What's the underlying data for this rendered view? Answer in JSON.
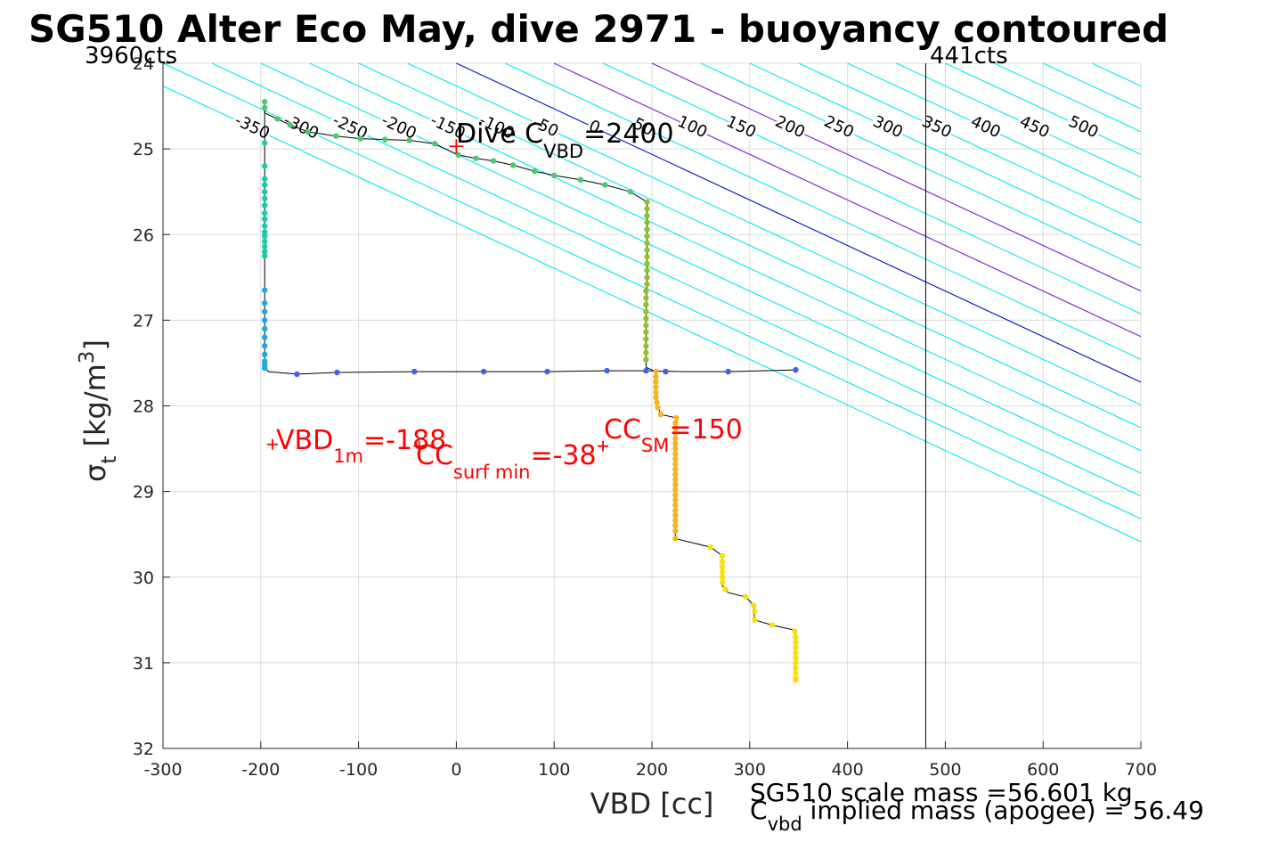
{
  "chart_data": {
    "type": "scatter",
    "title": "SG510 Alter Eco May, dive 2971 - buoyancy contoured",
    "xlabel": "VBD [cc]",
    "ylabel_main": "σ",
    "ylabel_sub": "t",
    "ylabel_rest": " [kg/m",
    "ylabel_sup": "3",
    "ylabel_close": "]",
    "xlim": [
      -300,
      700
    ],
    "ylim": [
      24,
      32
    ],
    "y_reversed": true,
    "grid": true,
    "xticks": [
      -300,
      -200,
      -100,
      0,
      100,
      200,
      300,
      400,
      500,
      600,
      700
    ],
    "yticks": [
      24,
      25,
      26,
      27,
      28,
      29,
      30,
      31,
      32
    ],
    "top_left_label": "3960cts",
    "top_right_label": "441cts",
    "vbd_limit_line_x": 480,
    "contour_slope_cc_per_kgm3": 188,
    "contours_cyan": [
      -350,
      -300,
      -250,
      -200,
      -150,
      -100,
      -50,
      50,
      100,
      150,
      200,
      250,
      300,
      350,
      400,
      450,
      500,
      550,
      600,
      650,
      700,
      750,
      800,
      850
    ],
    "contours_blue": [
      0
    ],
    "contours_purple": [
      100,
      200
    ],
    "contour_labels_upper": [
      {
        "text": "-350",
        "v": -350
      },
      {
        "text": "-300",
        "v": -300
      },
      {
        "text": "-250",
        "v": -250
      },
      {
        "text": "-200",
        "v": -200
      },
      {
        "text": "-150",
        "v": -150
      },
      {
        "text": "-100",
        "v": -100
      },
      {
        "text": "-50",
        "v": -50
      },
      {
        "text": "0",
        "v": 0
      },
      {
        "text": "50",
        "v": 50
      },
      {
        "text": "100",
        "v": 100
      },
      {
        "text": "150",
        "v": 150
      },
      {
        "text": "200",
        "v": 200
      },
      {
        "text": "250",
        "v": 250
      },
      {
        "text": "300",
        "v": 300
      },
      {
        "text": "350",
        "v": 350
      },
      {
        "text": "400",
        "v": 400
      },
      {
        "text": "450",
        "v": 450
      },
      {
        "text": "500",
        "v": 500
      }
    ],
    "contour_labels_lower": [
      {
        "text": "-50",
        "v": -50
      },
      {
        "text": "0",
        "v": 0
      },
      {
        "text": "50",
        "v": 50
      },
      {
        "text": "100",
        "v": 100
      },
      {
        "text": "150",
        "v": 150
      },
      {
        "text": "200",
        "v": 200
      },
      {
        "text": "250",
        "v": 250
      },
      {
        "text": "300",
        "v": 300
      },
      {
        "text": "350",
        "v": 350
      },
      {
        "text": "400",
        "v": 400
      },
      {
        "text": "450",
        "v": 450
      },
      {
        "text": "500",
        "v": 500
      }
    ],
    "profile_path": [
      [
        -196,
        24.45
      ],
      [
        -196,
        24.58
      ],
      [
        -183,
        24.65
      ],
      [
        -170,
        24.72
      ],
      [
        -152,
        24.8
      ],
      [
        -123,
        24.85
      ],
      [
        -98,
        24.88
      ],
      [
        -73,
        24.89
      ],
      [
        -48,
        24.9
      ],
      [
        -22,
        24.94
      ],
      [
        2,
        25.07
      ],
      [
        20,
        25.11
      ],
      [
        38,
        25.14
      ],
      [
        58,
        25.19
      ],
      [
        80,
        25.26
      ],
      [
        100,
        25.31
      ],
      [
        127,
        25.36
      ],
      [
        152,
        25.42
      ],
      [
        178,
        25.5
      ],
      [
        195,
        25.62
      ],
      [
        195,
        26.0
      ],
      [
        195,
        26.5
      ],
      [
        194,
        27.0
      ],
      [
        194,
        27.55
      ],
      [
        204,
        27.6
      ],
      [
        204,
        27.8
      ],
      [
        206,
        28.0
      ],
      [
        209,
        28.1
      ],
      [
        225,
        28.14
      ],
      [
        224,
        28.6
      ],
      [
        224,
        29.2
      ],
      [
        224,
        29.55
      ],
      [
        260,
        29.65
      ],
      [
        272,
        29.75
      ],
      [
        272,
        30.1
      ],
      [
        278,
        30.18
      ],
      [
        296,
        30.23
      ],
      [
        304,
        30.33
      ],
      [
        305,
        30.5
      ],
      [
        323,
        30.56
      ],
      [
        346,
        30.62
      ],
      [
        347,
        30.7
      ],
      [
        347,
        30.9
      ],
      [
        347,
        31.2
      ]
    ],
    "profile_path_2": [
      [
        -196,
        24.55
      ],
      [
        -196,
        25.5
      ],
      [
        -196,
        26.3
      ],
      [
        -196,
        27.0
      ],
      [
        -196,
        27.55
      ],
      [
        -192,
        27.6
      ],
      [
        -163,
        27.63
      ],
      [
        -122,
        27.61
      ],
      [
        -43,
        27.6
      ],
      [
        28,
        27.6
      ],
      [
        93,
        27.6
      ],
      [
        154,
        27.59
      ],
      [
        194,
        27.59
      ],
      [
        230,
        27.6
      ],
      [
        278,
        27.6
      ],
      [
        347,
        27.58
      ]
    ],
    "points_green_dive": [
      [
        -196,
        24.45
      ],
      [
        -196,
        24.52
      ],
      [
        -183,
        24.65
      ],
      [
        -170,
        24.72
      ],
      [
        -152,
        24.8
      ],
      [
        -123,
        24.85
      ],
      [
        -98,
        24.88
      ],
      [
        -73,
        24.89
      ],
      [
        -48,
        24.9
      ],
      [
        -22,
        24.94
      ],
      [
        2,
        25.07
      ],
      [
        20,
        25.11
      ],
      [
        38,
        25.14
      ],
      [
        58,
        25.19
      ],
      [
        80,
        25.26
      ],
      [
        100,
        25.31
      ],
      [
        127,
        25.36
      ],
      [
        152,
        25.42
      ],
      [
        178,
        25.5
      ]
    ],
    "points_teal_surface": [
      [
        -196,
        24.93
      ],
      [
        -196,
        25.2
      ],
      [
        -196,
        25.35
      ],
      [
        -196,
        25.42
      ],
      [
        -196,
        25.5
      ],
      [
        -196,
        25.58
      ],
      [
        -196,
        25.66
      ],
      [
        -196,
        25.75
      ],
      [
        -196,
        25.82
      ],
      [
        -196,
        25.9
      ],
      [
        -196,
        25.97
      ],
      [
        -196,
        26.02
      ],
      [
        -196,
        26.08
      ],
      [
        -196,
        26.14
      ],
      [
        -196,
        26.2
      ],
      [
        -196,
        26.25
      ]
    ],
    "points_lightblue_climb": [
      [
        -196,
        26.65
      ],
      [
        -196,
        26.8
      ],
      [
        -196,
        26.9
      ],
      [
        -196,
        27.0
      ],
      [
        -196,
        27.1
      ],
      [
        -196,
        27.2
      ],
      [
        -196,
        27.3
      ],
      [
        -196,
        27.4
      ],
      [
        -196,
        27.48
      ],
      [
        -196,
        27.52
      ],
      [
        -196,
        27.56
      ]
    ],
    "points_blue_apogee": [
      [
        -163,
        27.63
      ],
      [
        -122,
        27.61
      ],
      [
        -43,
        27.6
      ],
      [
        28,
        27.6
      ],
      [
        93,
        27.6
      ],
      [
        154,
        27.59
      ],
      [
        194,
        27.59
      ],
      [
        214,
        27.6
      ],
      [
        278,
        27.6
      ],
      [
        347,
        27.58
      ]
    ],
    "points_olive_column": [
      [
        195,
        25.62
      ],
      [
        195,
        25.7
      ],
      [
        195,
        25.78
      ],
      [
        195,
        25.86
      ],
      [
        195,
        25.94
      ],
      [
        195,
        26.02
      ],
      [
        195,
        26.1
      ],
      [
        195,
        26.18
      ],
      [
        195,
        26.26
      ],
      [
        195,
        26.34
      ],
      [
        195,
        26.42
      ],
      [
        195,
        26.5
      ],
      [
        195,
        26.58
      ],
      [
        194,
        26.66
      ],
      [
        194,
        26.74
      ],
      [
        194,
        26.82
      ],
      [
        194,
        26.9
      ],
      [
        194,
        26.98
      ],
      [
        194,
        27.06
      ],
      [
        194,
        27.14
      ],
      [
        194,
        27.22
      ],
      [
        194,
        27.3
      ],
      [
        194,
        27.38
      ],
      [
        194,
        27.46
      ]
    ],
    "points_orange_deep": [
      [
        204,
        27.6
      ],
      [
        204,
        27.66
      ],
      [
        204,
        27.72
      ],
      [
        204,
        27.78
      ],
      [
        204,
        27.84
      ],
      [
        204,
        27.9
      ],
      [
        205,
        27.96
      ],
      [
        206,
        28.02
      ],
      [
        209,
        28.1
      ],
      [
        225,
        28.14
      ],
      [
        224,
        28.2
      ],
      [
        224,
        28.26
      ],
      [
        224,
        28.32
      ],
      [
        224,
        28.38
      ],
      [
        224,
        28.44
      ],
      [
        224,
        28.5
      ],
      [
        224,
        28.56
      ],
      [
        224,
        28.62
      ],
      [
        224,
        28.68
      ],
      [
        224,
        28.74
      ],
      [
        224,
        28.8
      ],
      [
        224,
        28.86
      ],
      [
        224,
        28.92
      ],
      [
        224,
        28.98
      ],
      [
        224,
        29.04
      ],
      [
        224,
        29.1
      ],
      [
        224,
        29.16
      ],
      [
        224,
        29.22
      ],
      [
        224,
        29.28
      ],
      [
        224,
        29.34
      ],
      [
        224,
        29.4
      ],
      [
        224,
        29.46
      ],
      [
        224,
        29.55
      ]
    ],
    "points_yellow_bottom": [
      [
        260,
        29.65
      ],
      [
        272,
        29.75
      ],
      [
        272,
        29.82
      ],
      [
        272,
        29.88
      ],
      [
        272,
        29.94
      ],
      [
        272,
        30.0
      ],
      [
        272,
        30.06
      ],
      [
        275,
        30.14
      ],
      [
        296,
        30.23
      ],
      [
        304,
        30.33
      ],
      [
        305,
        30.4
      ],
      [
        305,
        30.5
      ],
      [
        323,
        30.56
      ],
      [
        346,
        30.63
      ],
      [
        347,
        30.7
      ],
      [
        347,
        30.76
      ],
      [
        347,
        30.82
      ],
      [
        347,
        30.88
      ],
      [
        347,
        30.94
      ],
      [
        347,
        31.0
      ],
      [
        347,
        31.06
      ],
      [
        347,
        31.12
      ],
      [
        347,
        31.18
      ],
      [
        347,
        31.2
      ]
    ],
    "colors": {
      "cyan": "#00eaf0",
      "blue": "#0010c8",
      "purple": "#a020d0",
      "grid": "#dcdcdc",
      "red": "#ff0000",
      "green_dive": "#4cc870",
      "teal_surface": "#1ec8a8",
      "lightblue_climb": "#22a8e0",
      "blue_apogee": "#4060f0",
      "olive_column": "#90c030",
      "orange_deep": "#f4b428",
      "yellow_bottom": "#f8e010",
      "vertical_line": "#000000"
    },
    "markers": [
      {
        "name": "dive-cvbd",
        "v": 0,
        "sigma": 24.97
      },
      {
        "name": "vbd-1m",
        "v": -188,
        "sigma": 28.45
      },
      {
        "name": "cc-surf-min",
        "v": -38,
        "sigma": 28.47
      },
      {
        "name": "cc-sm",
        "v": 150,
        "sigma": 28.47
      }
    ],
    "annotations": {
      "dive_cvbd": {
        "pre": "Dive C",
        "sub": "VBD",
        "post": "=2400"
      },
      "vbd_1m": {
        "pre": "VBD",
        "sub": "1m",
        "post": "=-188"
      },
      "cc_surf_min": {
        "pre": "CC",
        "sub": "surf min",
        "post": "=-38"
      },
      "cc_sm": {
        "pre": "CC",
        "sub": "SM",
        "post": "=150"
      }
    },
    "footer": {
      "scale_mass": "SG510 scale mass =56.601 kg",
      "cvbd_pre": "C",
      "cvbd_sub": "vbd",
      "cvbd_post": " implied mass (apogee) = 56.49"
    }
  }
}
